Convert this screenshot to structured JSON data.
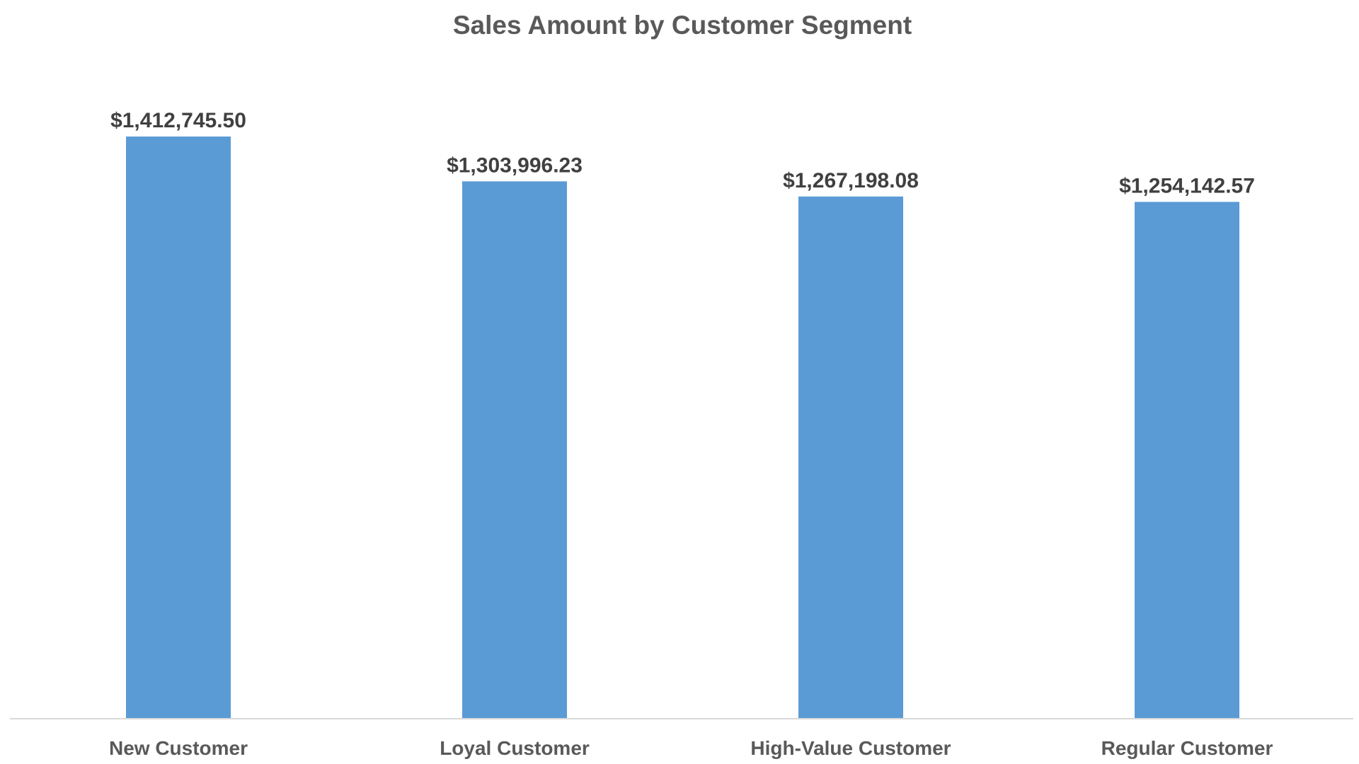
{
  "chart_data": {
    "type": "bar",
    "title": "Sales Amount by Customer Segment",
    "xlabel": "",
    "ylabel": "",
    "categories": [
      "New Customer",
      "Loyal Customer",
      "High-Value Customer",
      "Regular Customer"
    ],
    "values": [
      1412745.5,
      1303996.23,
      1267198.08,
      1254142.57
    ],
    "data_labels": [
      "$1,412,745.50",
      "$1,303,996.23",
      "$1,267,198.08",
      "$1,254,142.57"
    ],
    "ylim": [
      0,
      1412745.5
    ],
    "y_axis_visible": false,
    "grid": false,
    "legend": "none"
  },
  "colors": {
    "bar": "#5B9BD5",
    "title": "#595959",
    "data_label": "#404040",
    "tick_label": "#595959",
    "axis_line": "#D9D9D9"
  }
}
